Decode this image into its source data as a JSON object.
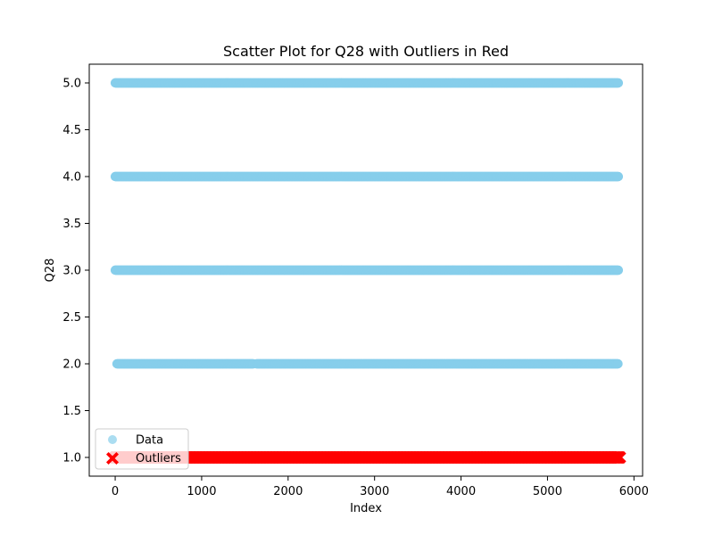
{
  "chart_data": {
    "type": "scatter",
    "title": "Scatter Plot for Q28 with Outliers in Red",
    "xlabel": "Index",
    "ylabel": "Q28",
    "xlim": [
      -300,
      6100
    ],
    "ylim": [
      0.8,
      5.2
    ],
    "x_ticks": [
      0,
      1000,
      2000,
      3000,
      4000,
      5000,
      6000
    ],
    "x_tick_labels": [
      "0",
      "1000",
      "2000",
      "3000",
      "4000",
      "5000",
      "6000"
    ],
    "y_ticks": [
      1.0,
      1.5,
      2.0,
      2.5,
      3.0,
      3.5,
      4.0,
      4.5,
      5.0
    ],
    "y_tick_labels": [
      "1.0",
      "1.5",
      "2.0",
      "2.5",
      "3.0",
      "3.5",
      "4.0",
      "4.5",
      "5.0"
    ],
    "grid": false,
    "legend_placement": "lower-left",
    "series": [
      {
        "name": "Data",
        "color": "#87ceeb",
        "marker": "circle",
        "alpha": 0.7,
        "bands": [
          {
            "y": 5.0,
            "x_start": 0,
            "x_end": 5820
          },
          {
            "y": 4.0,
            "x_start": 0,
            "x_end": 5820
          },
          {
            "y": 3.0,
            "x_start": 0,
            "x_end": 5820
          },
          {
            "y": 2.0,
            "x_start": 20,
            "x_end": 5820,
            "gaps": [
              [
                1600,
                1630
              ]
            ]
          }
        ]
      },
      {
        "name": "Outliers",
        "color": "#ff0000",
        "marker": "x-filled",
        "bands": [
          {
            "y": 1.0,
            "x_start": 0,
            "x_end": 5840
          }
        ]
      }
    ]
  }
}
